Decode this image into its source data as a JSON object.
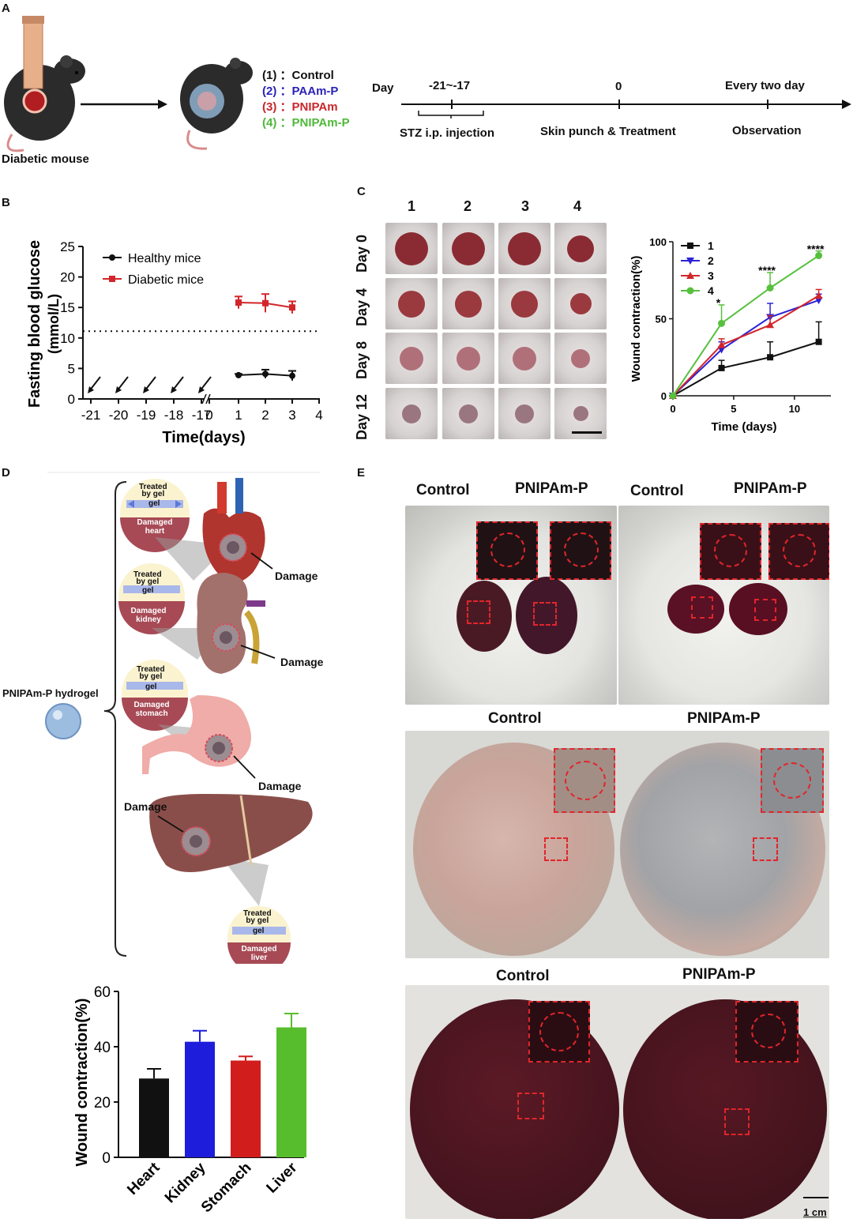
{
  "panels": {
    "A": "A",
    "B": "B",
    "C": "C",
    "D": "D",
    "E": "E"
  },
  "panelA": {
    "mouse_label": "Diabetic mouse",
    "groups": [
      {
        "num": "(1)",
        "sep": "：",
        "name": "Control",
        "color": "#111111"
      },
      {
        "num": "(2)",
        "sep": "：",
        "name": "PAAm-P",
        "color": "#2b23b8"
      },
      {
        "num": "(3)",
        "sep": "：",
        "name": "PNIPAm",
        "color": "#c8262b"
      },
      {
        "num": "(4)",
        "sep": "：",
        "name": "PNIPAm-P",
        "color": "#4fb83a"
      }
    ],
    "timeline": {
      "day_label": "Day",
      "t1": "-21~-17",
      "t2": "0",
      "t3": "Every two day",
      "e1": "STZ i.p. injection",
      "e2": "Skin punch & Treatment",
      "e3": "Observation"
    }
  },
  "panelB_chart": {
    "chart_data": {
      "type": "line",
      "ylabel": "Fasting blood glucose (mmol/L)",
      "ylabel_line1": "Fasting blood glucose",
      "ylabel_line2": "(mmol/L)",
      "xlabel": "Time(days)",
      "x_ticks": [
        "-21",
        "-20",
        "-19",
        "-18",
        "-17",
        "0",
        "1",
        "2",
        "3",
        "4"
      ],
      "y_ticks": [
        "0",
        "5",
        "10",
        "15",
        "20",
        "25"
      ],
      "ylim": [
        0,
        25
      ],
      "threshold": 11.1,
      "series": [
        {
          "name": "Healthy mice",
          "x": [
            1,
            2,
            3
          ],
          "values": [
            3.9,
            4.1,
            3.8
          ],
          "err": [
            0.2,
            0.7,
            0.8
          ],
          "color": "#111111"
        },
        {
          "name": "Diabetic mice",
          "x": [
            1,
            2,
            3
          ],
          "values": [
            15.8,
            15.7,
            15.0
          ],
          "err": [
            1.0,
            1.5,
            1.0
          ],
          "color": "#d2262b"
        }
      ]
    }
  },
  "panelC": {
    "cols": [
      "1",
      "2",
      "3",
      "4"
    ],
    "rows": [
      "Day 0",
      "Day 4",
      "Day 8",
      "Day 12"
    ],
    "chart_data": {
      "type": "line",
      "ylabel": "Wound contraction(%)",
      "xlabel": "Time (days)",
      "x_ticks": [
        "0",
        "5",
        "10"
      ],
      "y_ticks": [
        "0",
        "50",
        "100"
      ],
      "xlim": [
        0,
        13
      ],
      "ylim": [
        0,
        100
      ],
      "x": [
        0,
        4,
        8,
        12
      ],
      "series": [
        {
          "name": "1",
          "values": [
            0,
            18,
            25,
            35
          ],
          "err": [
            0,
            5,
            10,
            13
          ],
          "color": "#111111",
          "marker": "square"
        },
        {
          "name": "2",
          "values": [
            0,
            30,
            51,
            62
          ],
          "err": [
            0,
            5,
            9,
            4
          ],
          "color": "#2b23d6",
          "marker": "tri-down"
        },
        {
          "name": "3",
          "values": [
            0,
            33,
            46,
            65
          ],
          "err": [
            0,
            4,
            6,
            4
          ],
          "color": "#d2262b",
          "marker": "tri-up"
        },
        {
          "name": "4",
          "values": [
            0,
            47,
            70,
            91
          ],
          "err": [
            0,
            12,
            10,
            3
          ],
          "color": "#57c03d",
          "marker": "circle"
        }
      ],
      "annotations": [
        {
          "x": 4,
          "y": 62,
          "text": "*"
        },
        {
          "x": 8,
          "y": 83,
          "text": "****"
        },
        {
          "x": 12,
          "y": 97,
          "text": "****"
        }
      ]
    }
  },
  "panelD": {
    "hydrogel_label": "PNIPAm-P hydrogel",
    "treated": "Treated",
    "by_gel": "by gel",
    "gel": "gel",
    "damaged_heart": "Damaged heart",
    "damaged_kidney": "Damaged kidney",
    "damaged_stomach": "Damaged stomach",
    "damaged_liver": "Damaged liver",
    "damage": "Damage",
    "chart_data": {
      "type": "bar",
      "categories": [
        "Heart",
        "Kidney",
        "Stomach",
        "Liver"
      ],
      "values": [
        28.5,
        41.8,
        35.0,
        47.0
      ],
      "err": [
        3.5,
        4.0,
        1.5,
        5.0
      ],
      "colors": [
        "#111111",
        "#1d1ddb",
        "#d21d1d",
        "#58bd2c"
      ],
      "ylabel": "Wound contraction(%)",
      "y_ticks": [
        "0",
        "20",
        "40",
        "60"
      ],
      "ylim": [
        0,
        60
      ]
    }
  },
  "panelE": {
    "row1": [
      "Control",
      "PNIPAm-P",
      "Control",
      "PNIPAm-P"
    ],
    "row2": [
      "Control",
      "PNIPAm-P"
    ],
    "row3": [
      "Control",
      "PNIPAm-P"
    ],
    "scale": "1 cm"
  }
}
